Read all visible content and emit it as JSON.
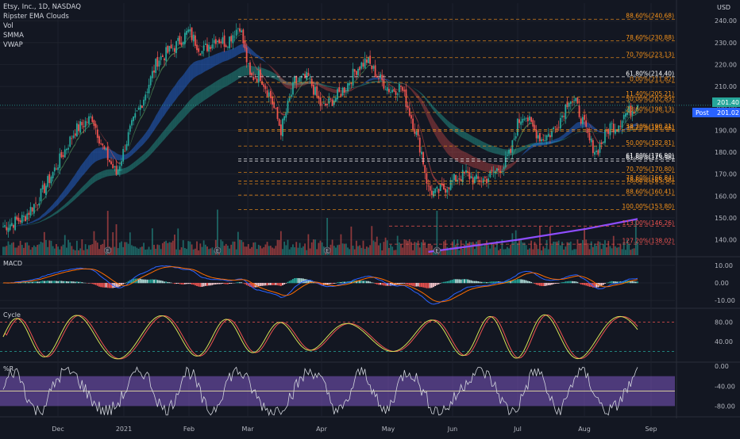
{
  "legend": {
    "symbol": "Etsy, Inc., 1D, NASDAQ",
    "indicators": [
      "Ripster EMA Clouds",
      "Vol",
      "SMMA",
      "VWAP"
    ]
  },
  "currency": "USD",
  "colors": {
    "background": "#131722",
    "up": "#26a69a",
    "down": "#ef5350",
    "fib_line": "#f7931a",
    "fib_label": "#f7931a",
    "white_level": "#ffffff",
    "price_badge": "#26a69a",
    "post_badge": "#2962ff",
    "vwap": "#8e4dff",
    "macd": "#2962ff",
    "signal": "#ff6d00",
    "cycle_fast": "#d4e157",
    "cycle_slow": "#ef5350",
    "wr_line": "#d1d4dc",
    "wr_band": "#7e57c2"
  },
  "price_badge": {
    "value": "201.40"
  },
  "post_badge": {
    "label": "Post",
    "value": "201.02"
  },
  "chart_data": [
    {
      "type": "line",
      "panel": "price",
      "x_ticks": [
        "Dec",
        "2021",
        "Feb",
        "Mar",
        "Apr",
        "May",
        "Jun",
        "Jul",
        "Aug",
        "Sep"
      ],
      "y_ticks": [
        140,
        150,
        160,
        170,
        180,
        190,
        200,
        210,
        220,
        230,
        240
      ],
      "ylim": [
        133,
        248
      ],
      "price_keypoints": [
        [
          0,
          146
        ],
        [
          12,
          150
        ],
        [
          20,
          158
        ],
        [
          30,
          172
        ],
        [
          42,
          190
        ],
        [
          52,
          196
        ],
        [
          58,
          182
        ],
        [
          66,
          170
        ],
        [
          74,
          190
        ],
        [
          82,
          205
        ],
        [
          90,
          222
        ],
        [
          100,
          228
        ],
        [
          108,
          235
        ],
        [
          116,
          226
        ],
        [
          124,
          232
        ],
        [
          130,
          230
        ],
        [
          138,
          238
        ],
        [
          144,
          214
        ],
        [
          150,
          215
        ],
        [
          156,
          205
        ],
        [
          162,
          190
        ],
        [
          170,
          212
        ],
        [
          178,
          214
        ],
        [
          186,
          200
        ],
        [
          194,
          205
        ],
        [
          200,
          210
        ],
        [
          206,
          218
        ],
        [
          212,
          222
        ],
        [
          218,
          215
        ],
        [
          226,
          208
        ],
        [
          232,
          210
        ],
        [
          238,
          196
        ],
        [
          244,
          180
        ],
        [
          248,
          163
        ],
        [
          252,
          161
        ],
        [
          258,
          164
        ],
        [
          264,
          168
        ],
        [
          270,
          170
        ],
        [
          276,
          167
        ],
        [
          282,
          168
        ],
        [
          288,
          172
        ],
        [
          292,
          174
        ],
        [
          296,
          180
        ],
        [
          300,
          193
        ],
        [
          304,
          198
        ],
        [
          308,
          192
        ],
        [
          314,
          186
        ],
        [
          320,
          189
        ],
        [
          326,
          197
        ],
        [
          330,
          205
        ],
        [
          334,
          202
        ],
        [
          338,
          194
        ],
        [
          342,
          185
        ],
        [
          346,
          180
        ],
        [
          350,
          186
        ],
        [
          354,
          192
        ],
        [
          358,
          192
        ],
        [
          362,
          197
        ],
        [
          366,
          199
        ],
        [
          370,
          201.4
        ]
      ],
      "vwap_points": [
        [
          248,
          134.5
        ],
        [
          300,
          140
        ],
        [
          340,
          145
        ],
        [
          370,
          149.5
        ]
      ],
      "fib_levels": [
        {
          "label": "88.60%(240.68)",
          "value": 240.68,
          "color": "orange"
        },
        {
          "label": "78.60%(230.88)",
          "value": 230.88,
          "color": "orange"
        },
        {
          "label": "70.70%(223.13)",
          "value": 223.13,
          "color": "orange"
        },
        {
          "label": "61.80%(214.40)",
          "value": 214.4,
          "color": "white"
        },
        {
          "label": "0.00%(211.82)",
          "value": 211.82,
          "color": "orange"
        },
        {
          "label": "11.40%(205.21)",
          "value": 205.21,
          "color": "orange"
        },
        {
          "label": "50.00%(202.83)",
          "value": 202.83,
          "color": "orange"
        },
        {
          "label": "23.60%(198.13)",
          "value": 198.13,
          "color": "orange"
        },
        {
          "label": "38.20%(190.31)",
          "value": 190.31,
          "color": "orange"
        },
        {
          "label": "38.20%(189.66)",
          "value": 189.66,
          "color": "orange"
        },
        {
          "label": "50.00%(182.81)",
          "value": 182.81,
          "color": "orange"
        },
        {
          "label": "61.80%(176.90)",
          "value": 176.9,
          "color": "white"
        },
        {
          "label": "61.80%(175.96)",
          "value": 175.96,
          "color": "white"
        },
        {
          "label": "70.70%(170.80)",
          "value": 170.8,
          "color": "orange"
        },
        {
          "label": "78.60%(166.84)",
          "value": 166.84,
          "color": "orange"
        },
        {
          "label": "78.60%(165.56)",
          "value": 165.56,
          "color": "orange"
        },
        {
          "label": "88.60%(160.41)",
          "value": 160.41,
          "color": "orange"
        },
        {
          "label": "100.00%(153.80)",
          "value": 153.8,
          "color": "orange"
        },
        {
          "label": "113.00%(146.26)",
          "value": 146.26,
          "color": "red"
        },
        {
          "label": "127.20%(138.02)",
          "value": 138.02,
          "color": "red"
        }
      ],
      "earnings_markers": [
        61,
        125,
        189,
        253
      ],
      "earnings_label": "E"
    },
    {
      "type": "bar",
      "panel": "macd",
      "title": "MACD",
      "y_ticks": [
        "10.00",
        "0.00",
        "-10.00"
      ],
      "ylim": [
        -14,
        14
      ]
    },
    {
      "type": "line",
      "panel": "cycle",
      "title": "Cycle",
      "y_ticks": [
        "80.00",
        "40.00"
      ],
      "ylim": [
        0,
        105
      ],
      "upper_level": 80,
      "lower_level": 20
    },
    {
      "type": "line",
      "panel": "williams_r",
      "title": "%R",
      "y_ticks": [
        "0.00",
        "-40.00",
        "-80.00"
      ],
      "ylim": [
        -100,
        5
      ],
      "band": [
        -20,
        -80
      ],
      "mid": -50
    }
  ]
}
